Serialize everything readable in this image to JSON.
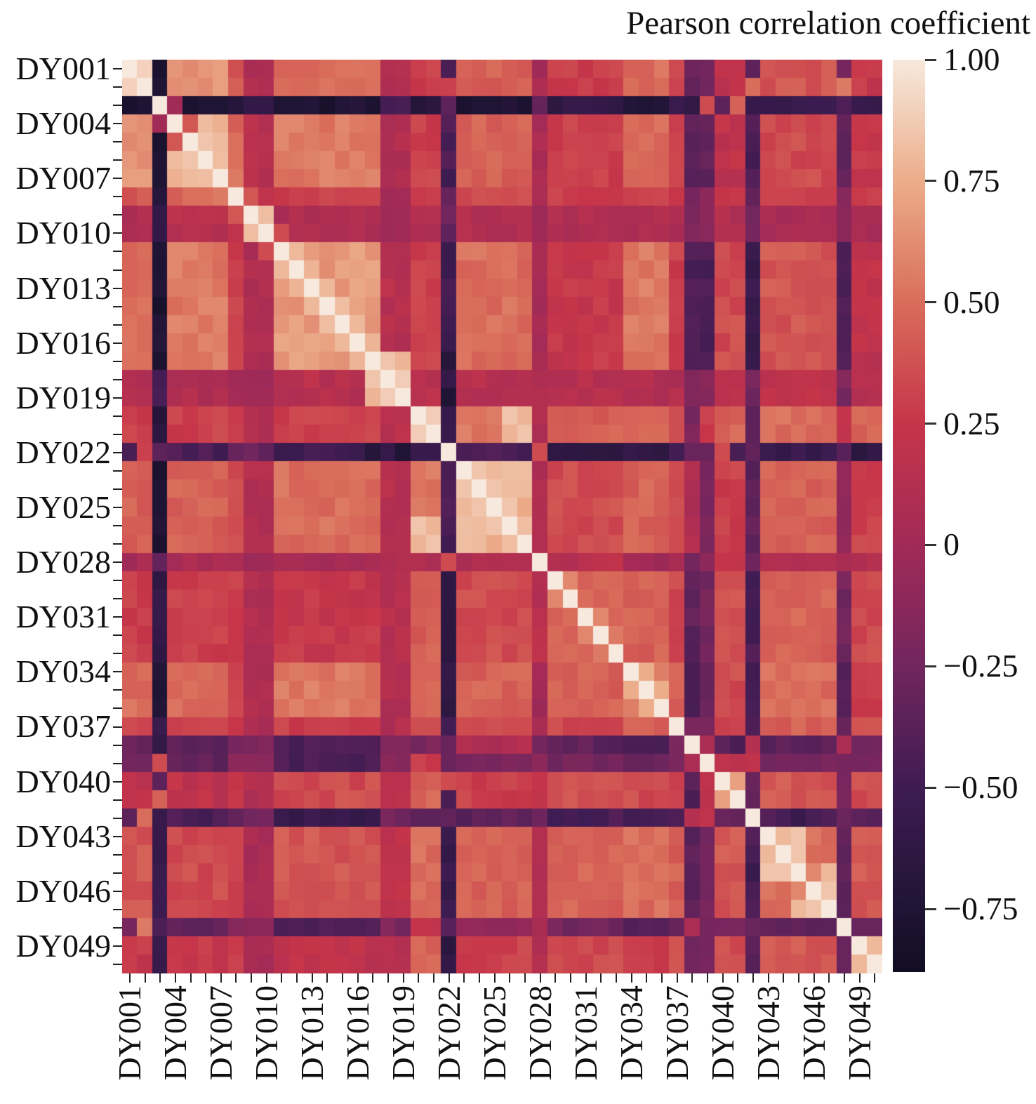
{
  "title": "Pearson correlation coefficient",
  "chart_data": {
    "type": "heatmap",
    "subject": "pairwise Pearson correlation matrix of 50 samples",
    "n": 50,
    "labels_shown": [
      "DY001",
      "DY004",
      "DY007",
      "DY010",
      "DY013",
      "DY016",
      "DY019",
      "DY022",
      "DY025",
      "DY028",
      "DY031",
      "DY034",
      "DY037",
      "DY040",
      "DY043",
      "DY046",
      "DY049"
    ],
    "label_tick_step": 3,
    "label_prefix": "DY",
    "grid": false,
    "legend_position": "right-colorbar",
    "colorbar": {
      "title": "Pearson correlation coefficient",
      "vmin": -0.88,
      "vmax": 1.0,
      "ticks": [
        {
          "v": 1.0,
          "label": "1.00"
        },
        {
          "v": 0.75,
          "label": "0.75"
        },
        {
          "v": 0.5,
          "label": "0.50"
        },
        {
          "v": 0.25,
          "label": "0.25"
        },
        {
          "v": 0.0,
          "label": "0"
        },
        {
          "v": -0.25,
          "label": "−0.25"
        },
        {
          "v": -0.5,
          "label": "−0.50"
        },
        {
          "v": -0.75,
          "label": "−0.75"
        }
      ]
    },
    "colormap_name": "rocket",
    "colormap_stops": [
      [
        1.0,
        "#F7E9DD"
      ],
      [
        0.75,
        "#ECAD8B"
      ],
      [
        0.5,
        "#D96D5B"
      ],
      [
        0.25,
        "#C63549"
      ],
      [
        0.0,
        "#A12A57"
      ],
      [
        -0.25,
        "#72265E"
      ],
      [
        -0.5,
        "#3F1C53"
      ],
      [
        -0.75,
        "#1F1434"
      ],
      [
        -0.88,
        "#120D23"
      ]
    ],
    "matrix_model": {
      "comment": "values estimated from pixels; matrix = block[group(i)][group(j)] + jitter, symmetric, diagonal 1.0, then pair overrides",
      "diagonal": 1.0,
      "jitter": 0.06,
      "groups": [
        [
          0,
          1
        ],
        [
          2
        ],
        [
          3,
          4,
          5,
          6
        ],
        [
          7
        ],
        [
          8,
          9
        ],
        [
          10,
          11,
          12,
          13,
          14,
          15,
          16
        ],
        [
          17,
          18
        ],
        [
          19,
          20
        ],
        [
          21
        ],
        [
          22,
          23,
          24,
          25,
          26
        ],
        [
          27
        ],
        [
          28,
          29,
          30,
          31,
          32
        ],
        [
          33,
          34,
          35
        ],
        [
          36
        ],
        [
          37
        ],
        [
          38
        ],
        [
          39,
          40
        ],
        [
          41
        ],
        [
          42,
          43,
          44,
          45,
          46
        ],
        [
          47
        ],
        [
          48,
          49
        ]
      ],
      "block": [
        [
          0.85,
          -0.75,
          0.65,
          0.4,
          0.1,
          0.5,
          0.1,
          0.3,
          -0.4,
          0.45,
          0.05,
          0.3,
          0.5,
          0.3,
          -0.3,
          -0.3,
          0.2,
          -0.4,
          0.4,
          -0.25,
          0.25
        ],
        [
          -0.75,
          1.0,
          -0.75,
          -0.7,
          -0.6,
          -0.75,
          -0.5,
          -0.7,
          -0.4,
          -0.75,
          -0.3,
          -0.6,
          -0.7,
          -0.6,
          -0.55,
          0.35,
          -0.3,
          -0.6,
          -0.55,
          -0.45,
          -0.6
        ],
        [
          0.65,
          -0.75,
          0.8,
          0.45,
          0.15,
          0.55,
          0.1,
          0.3,
          -0.45,
          0.45,
          0.05,
          0.3,
          0.5,
          0.3,
          -0.35,
          -0.35,
          0.2,
          -0.45,
          0.35,
          -0.35,
          0.25
        ],
        [
          0.4,
          -0.7,
          0.45,
          1.0,
          0.2,
          0.3,
          0.05,
          0.3,
          -0.3,
          0.35,
          0.1,
          0.3,
          0.35,
          0.3,
          -0.2,
          -0.15,
          0.25,
          -0.3,
          0.3,
          -0.15,
          0.25
        ],
        [
          0.1,
          -0.6,
          0.15,
          0.2,
          0.8,
          0.1,
          0.0,
          0.1,
          -0.3,
          0.1,
          0.0,
          0.1,
          0.1,
          0.05,
          -0.15,
          -0.1,
          0.1,
          -0.2,
          0.05,
          -0.1,
          0.05
        ],
        [
          0.5,
          -0.75,
          0.55,
          0.3,
          0.1,
          0.68,
          0.15,
          0.3,
          -0.5,
          0.5,
          0.0,
          0.25,
          0.55,
          0.3,
          -0.45,
          -0.45,
          0.35,
          -0.55,
          0.4,
          -0.4,
          0.2
        ],
        [
          0.1,
          -0.5,
          0.1,
          0.05,
          0.0,
          0.15,
          0.85,
          0.15,
          -0.6,
          0.15,
          0.1,
          0.15,
          0.1,
          0.1,
          -0.2,
          -0.15,
          0.15,
          -0.25,
          0.2,
          -0.2,
          0.15
        ],
        [
          0.3,
          -0.7,
          0.3,
          0.3,
          0.1,
          0.3,
          0.15,
          0.85,
          -0.55,
          0.55,
          0.1,
          0.45,
          0.5,
          0.4,
          -0.2,
          0.3,
          0.45,
          -0.3,
          0.5,
          0.2,
          0.45
        ],
        [
          -0.4,
          -0.4,
          -0.45,
          -0.3,
          -0.3,
          -0.5,
          -0.6,
          -0.55,
          1.0,
          -0.45,
          0.35,
          -0.6,
          -0.6,
          -0.5,
          -0.3,
          -0.3,
          -0.5,
          -0.35,
          -0.55,
          -0.4,
          -0.65
        ],
        [
          0.45,
          -0.75,
          0.45,
          0.35,
          0.1,
          0.5,
          0.15,
          0.55,
          -0.45,
          0.78,
          0.1,
          0.35,
          0.45,
          0.35,
          0.1,
          -0.2,
          0.3,
          -0.35,
          0.45,
          -0.1,
          0.3
        ],
        [
          0.05,
          -0.3,
          0.05,
          0.1,
          0.0,
          0.0,
          0.1,
          0.1,
          0.35,
          0.1,
          1.0,
          0.15,
          0.0,
          0.1,
          -0.2,
          -0.1,
          0.2,
          -0.3,
          0.1,
          0.0,
          0.1
        ],
        [
          0.3,
          -0.6,
          0.3,
          0.3,
          0.1,
          0.25,
          0.15,
          0.45,
          -0.6,
          0.35,
          0.15,
          0.45,
          0.45,
          0.35,
          -0.35,
          -0.25,
          0.4,
          -0.45,
          0.45,
          -0.25,
          0.35
        ],
        [
          0.5,
          -0.7,
          0.5,
          0.35,
          0.1,
          0.55,
          0.1,
          0.5,
          -0.6,
          0.45,
          0.0,
          0.45,
          0.6,
          0.45,
          -0.4,
          -0.3,
          0.35,
          -0.5,
          0.5,
          -0.35,
          0.3
        ],
        [
          0.3,
          -0.6,
          0.3,
          0.3,
          0.05,
          0.3,
          0.1,
          0.4,
          -0.5,
          0.35,
          0.1,
          0.35,
          0.45,
          1.0,
          -0.2,
          -0.2,
          0.35,
          -0.4,
          0.45,
          -0.3,
          0.35
        ],
        [
          -0.3,
          -0.55,
          -0.35,
          -0.2,
          -0.15,
          -0.45,
          -0.2,
          -0.2,
          -0.3,
          0.1,
          -0.2,
          -0.35,
          -0.4,
          -0.2,
          1.0,
          0.1,
          -0.4,
          0.15,
          -0.35,
          0.1,
          -0.3
        ],
        [
          -0.3,
          0.35,
          -0.35,
          -0.15,
          -0.1,
          -0.45,
          -0.15,
          0.3,
          -0.3,
          -0.2,
          -0.1,
          -0.25,
          -0.3,
          -0.2,
          0.1,
          1.0,
          0.15,
          0.2,
          -0.25,
          -0.2,
          -0.25
        ],
        [
          0.2,
          -0.3,
          0.2,
          0.25,
          0.1,
          0.35,
          0.15,
          0.45,
          -0.5,
          0.3,
          0.2,
          0.4,
          0.35,
          0.35,
          -0.4,
          0.15,
          0.55,
          -0.3,
          0.4,
          -0.25,
          0.35
        ],
        [
          -0.4,
          -0.6,
          -0.45,
          -0.3,
          -0.2,
          -0.55,
          -0.25,
          -0.3,
          -0.35,
          -0.35,
          -0.3,
          -0.45,
          -0.5,
          -0.4,
          0.15,
          0.2,
          -0.3,
          1.0,
          -0.45,
          -0.3,
          -0.4
        ],
        [
          0.4,
          -0.55,
          0.35,
          0.3,
          0.05,
          0.4,
          0.2,
          0.5,
          -0.55,
          0.45,
          0.1,
          0.45,
          0.5,
          0.45,
          -0.35,
          -0.25,
          0.4,
          -0.45,
          0.5,
          -0.35,
          0.4
        ],
        [
          -0.25,
          -0.45,
          -0.35,
          -0.15,
          -0.1,
          -0.4,
          -0.2,
          0.2,
          -0.4,
          -0.1,
          0.0,
          -0.25,
          -0.35,
          -0.3,
          0.1,
          -0.2,
          -0.25,
          -0.3,
          -0.35,
          1.0,
          -0.3
        ],
        [
          0.25,
          -0.6,
          0.25,
          0.25,
          0.05,
          0.2,
          0.15,
          0.45,
          -0.65,
          0.3,
          0.1,
          0.35,
          0.3,
          0.35,
          -0.3,
          -0.25,
          0.35,
          -0.4,
          0.4,
          -0.3,
          0.75
        ]
      ],
      "overrides": [
        [
          0,
          1,
          0.9
        ],
        [
          2,
          3,
          0.0
        ],
        [
          3,
          4,
          0.4
        ],
        [
          4,
          5,
          0.85
        ],
        [
          5,
          6,
          0.82
        ],
        [
          6,
          7,
          0.55
        ],
        [
          7,
          8,
          0.4
        ],
        [
          8,
          9,
          0.82
        ],
        [
          9,
          10,
          0.35
        ],
        [
          10,
          11,
          0.8
        ],
        [
          11,
          12,
          0.78
        ],
        [
          12,
          13,
          0.8
        ],
        [
          13,
          14,
          0.82
        ],
        [
          14,
          15,
          0.8
        ],
        [
          15,
          16,
          0.78
        ],
        [
          16,
          17,
          0.85
        ],
        [
          16,
          18,
          0.78
        ],
        [
          17,
          18,
          0.88
        ],
        [
          19,
          20,
          0.88
        ],
        [
          19,
          25,
          0.85
        ],
        [
          19,
          26,
          0.78
        ],
        [
          20,
          25,
          0.78
        ],
        [
          20,
          26,
          0.85
        ],
        [
          22,
          23,
          0.85
        ],
        [
          23,
          24,
          0.85
        ],
        [
          24,
          25,
          0.85
        ],
        [
          25,
          26,
          0.82
        ],
        [
          28,
          29,
          0.6
        ],
        [
          30,
          31,
          0.6
        ],
        [
          31,
          32,
          0.55
        ],
        [
          33,
          34,
          0.75
        ],
        [
          34,
          35,
          0.75
        ],
        [
          39,
          40,
          0.7
        ],
        [
          42,
          43,
          0.8
        ],
        [
          43,
          44,
          0.85
        ],
        [
          42,
          44,
          0.85
        ],
        [
          44,
          45,
          0.6
        ],
        [
          45,
          46,
          0.85
        ],
        [
          44,
          46,
          0.8
        ],
        [
          48,
          49,
          0.8
        ],
        [
          2,
          38,
          0.35
        ],
        [
          2,
          40,
          0.45
        ],
        [
          1,
          21,
          0.3
        ],
        [
          21,
          27,
          0.35
        ],
        [
          21,
          39,
          0.35
        ],
        [
          18,
          21,
          -0.75
        ],
        [
          16,
          21,
          -0.7
        ],
        [
          1,
          41,
          0.5
        ],
        [
          1,
          47,
          0.55
        ],
        [
          41,
          44,
          -0.55
        ],
        [
          47,
          48,
          -0.3
        ],
        [
          47,
          49,
          -0.3
        ],
        [
          36,
          37,
          -0.2
        ]
      ]
    }
  }
}
